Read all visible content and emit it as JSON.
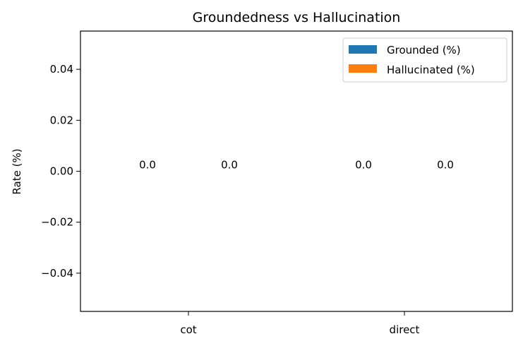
{
  "chart_data": {
    "type": "bar",
    "title": "Groundedness vs Hallucination",
    "xlabel": "",
    "ylabel": "Rate (%)",
    "categories": [
      "cot",
      "direct"
    ],
    "series": [
      {
        "name": "Grounded (%)",
        "values": [
          0.0,
          0.0
        ],
        "color": "#1f77b4"
      },
      {
        "name": "Hallucinated (%)",
        "values": [
          0.0,
          0.0
        ],
        "color": "#ff7f0e"
      }
    ],
    "data_labels": [
      "0.0",
      "0.0",
      "0.0",
      "0.0"
    ],
    "ylim": [
      -0.055,
      0.055
    ],
    "yticks": [
      "0.04",
      "0.02",
      "0.00",
      "−0.02",
      "−0.04"
    ],
    "grid": false,
    "legend_position": "top-right"
  }
}
